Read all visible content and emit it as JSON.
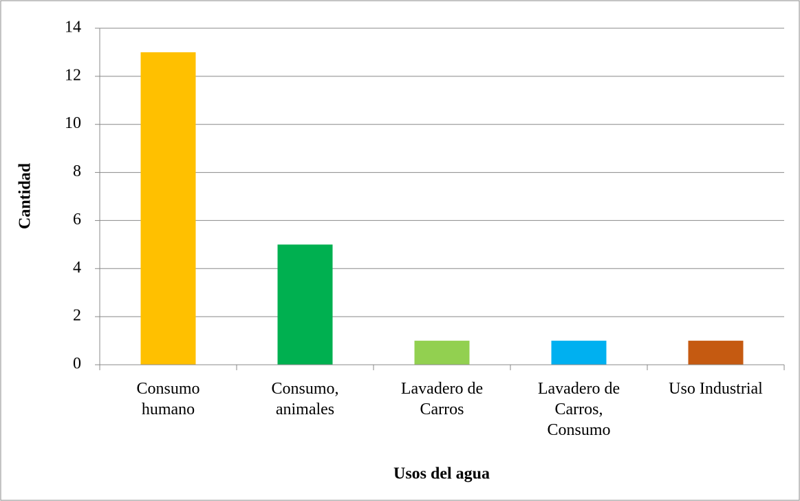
{
  "chart_data": {
    "type": "bar",
    "x_label": "Usos del agua",
    "y_label": "Cantidad",
    "categories": [
      "Consumo\nhumano",
      "Consumo,\nanimales",
      "Lavadero de\nCarros",
      "Lavadero de\nCarros,\nConsumo",
      "Uso Industrial"
    ],
    "values": [
      13,
      5,
      1,
      1,
      1
    ],
    "colors": [
      "#FFC000",
      "#00B050",
      "#92D050",
      "#00B0F0",
      "#C55A11"
    ],
    "ylim": [
      0,
      14
    ],
    "yticks": [
      0,
      2,
      4,
      6,
      8,
      10,
      12,
      14
    ],
    "grid": true
  }
}
